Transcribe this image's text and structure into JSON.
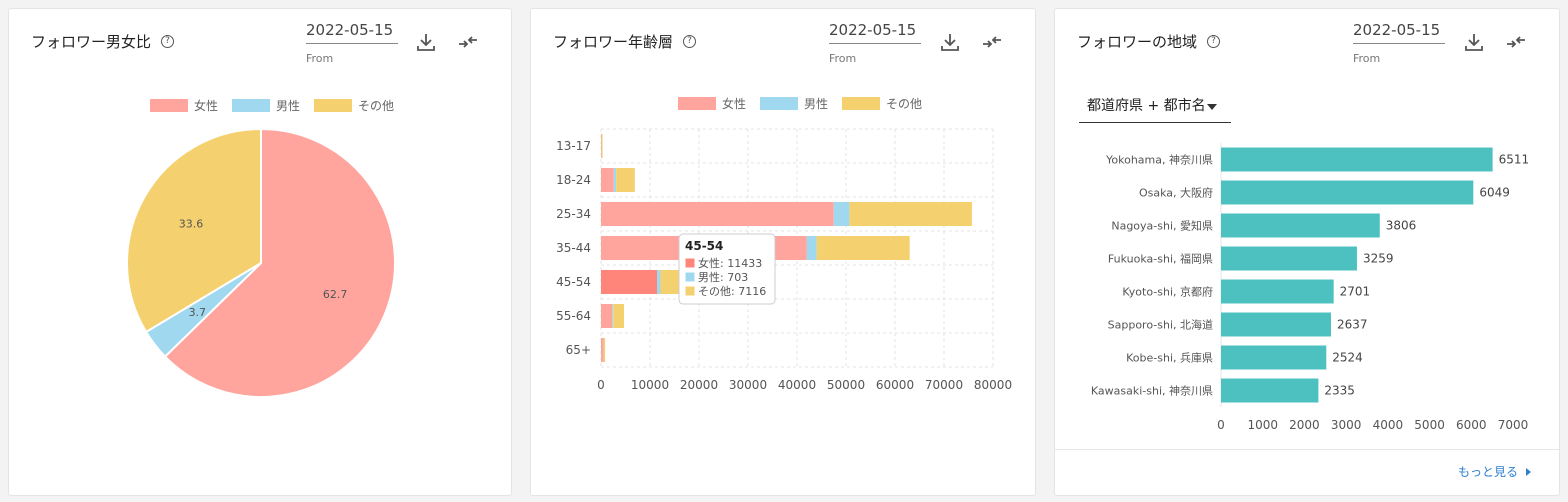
{
  "colors": {
    "female": "#ffa59e",
    "male": "#a0d8ef",
    "other": "#f5d06e",
    "region_bar": "#4dc0c0",
    "female_hover": "#ff8479",
    "link": "#2e7fd0"
  },
  "gender_card": {
    "title": "フォロワー男女比",
    "help_icon": "question-circle-icon",
    "date": "2022-05-15",
    "date_label": "From",
    "download_icon": "download-icon",
    "compare_icon": "compare-arrows-icon",
    "legend": [
      "女性",
      "男性",
      "その他"
    ],
    "chart_data": {
      "type": "pie",
      "categories": [
        "女性",
        "男性",
        "その他"
      ],
      "values": [
        62.7,
        3.7,
        33.6
      ],
      "labels": [
        "62.7",
        "3.7",
        "33.6"
      ],
      "legend_position": "top"
    }
  },
  "age_card": {
    "title": "フォロワー年齢層",
    "help_icon": "question-circle-icon",
    "date": "2022-05-15",
    "date_label": "From",
    "download_icon": "download-icon",
    "compare_icon": "compare-arrows-icon",
    "legend": [
      "女性",
      "男性",
      "その他"
    ],
    "chart_data": {
      "type": "bar",
      "orientation": "horizontal",
      "stacked": true,
      "categories": [
        "13-17",
        "18-24",
        "25-34",
        "35-44",
        "45-54",
        "55-64",
        "65+"
      ],
      "series": [
        {
          "name": "女性",
          "values": [
            100,
            2600,
            47500,
            42000,
            11433,
            2300,
            500
          ]
        },
        {
          "name": "男性",
          "values": [
            20,
            500,
            3200,
            2000,
            703,
            200,
            40
          ]
        },
        {
          "name": "その他",
          "values": [
            200,
            3800,
            25000,
            19000,
            7116,
            2200,
            300
          ]
        }
      ],
      "xticks": [
        "0",
        "10000",
        "20000",
        "30000",
        "40000",
        "50000",
        "60000",
        "70000",
        "80000"
      ],
      "xlim": [
        0,
        80000
      ],
      "grid": true,
      "legend_position": "top",
      "tooltip": {
        "category": "45-54",
        "lines": [
          "女性: 11433",
          "男性: 703",
          "その他: 7116"
        ]
      }
    }
  },
  "region_card": {
    "title": "フォロワーの地域",
    "help_icon": "question-circle-icon",
    "date": "2022-05-15",
    "date_label": "From",
    "download_icon": "download-icon",
    "compare_icon": "compare-arrows-icon",
    "select_value": "都道府県 + 都市名",
    "more_label": "もっと見る",
    "chart_data": {
      "type": "bar",
      "orientation": "horizontal",
      "categories": [
        "Yokohama, 神奈川県",
        "Osaka, 大阪府",
        "Nagoya-shi, 愛知県",
        "Fukuoka-shi, 福岡県",
        "Kyoto-shi, 京都府",
        "Sapporo-shi, 北海道",
        "Kobe-shi, 兵庫県",
        "Kawasaki-shi, 神奈川県"
      ],
      "values": [
        6511,
        6049,
        3806,
        3259,
        2701,
        2637,
        2524,
        2335
      ],
      "xticks": [
        "0",
        "1000",
        "2000",
        "3000",
        "4000",
        "5000",
        "6000",
        "7000"
      ],
      "xlim": [
        0,
        7000
      ],
      "data_labels": true
    }
  }
}
